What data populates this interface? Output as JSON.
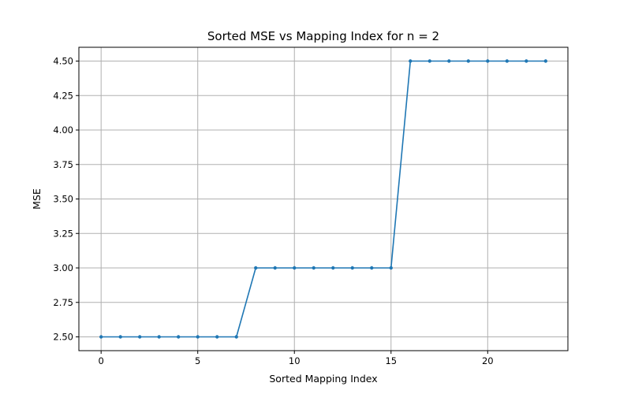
{
  "chart_data": {
    "type": "line",
    "title": "Sorted MSE vs Mapping Index for n = 2",
    "xlabel": "Sorted Mapping Index",
    "ylabel": "MSE",
    "xlim": [
      -1.15,
      24.15
    ],
    "ylim": [
      2.4,
      4.6
    ],
    "xticks": [
      0,
      5,
      10,
      15,
      20
    ],
    "yticks": [
      2.5,
      2.75,
      3.0,
      3.25,
      3.5,
      3.75,
      4.0,
      4.25,
      4.5
    ],
    "xtick_labels": [
      "0",
      "5",
      "10",
      "15",
      "20"
    ],
    "ytick_labels": [
      "2.50",
      "2.75",
      "3.00",
      "3.25",
      "3.50",
      "3.75",
      "4.00",
      "4.25",
      "4.50"
    ],
    "grid": true,
    "series": [
      {
        "color": "#1f77b4",
        "marker": "dot",
        "x": [
          0,
          1,
          2,
          3,
          4,
          5,
          6,
          7,
          8,
          9,
          10,
          11,
          12,
          13,
          14,
          15,
          16,
          17,
          18,
          19,
          20,
          21,
          22,
          23
        ],
        "y": [
          2.5,
          2.5,
          2.5,
          2.5,
          2.5,
          2.5,
          2.5,
          2.5,
          3.0,
          3.0,
          3.0,
          3.0,
          3.0,
          3.0,
          3.0,
          3.0,
          4.5,
          4.5,
          4.5,
          4.5,
          4.5,
          4.5,
          4.5,
          4.5
        ]
      }
    ]
  }
}
